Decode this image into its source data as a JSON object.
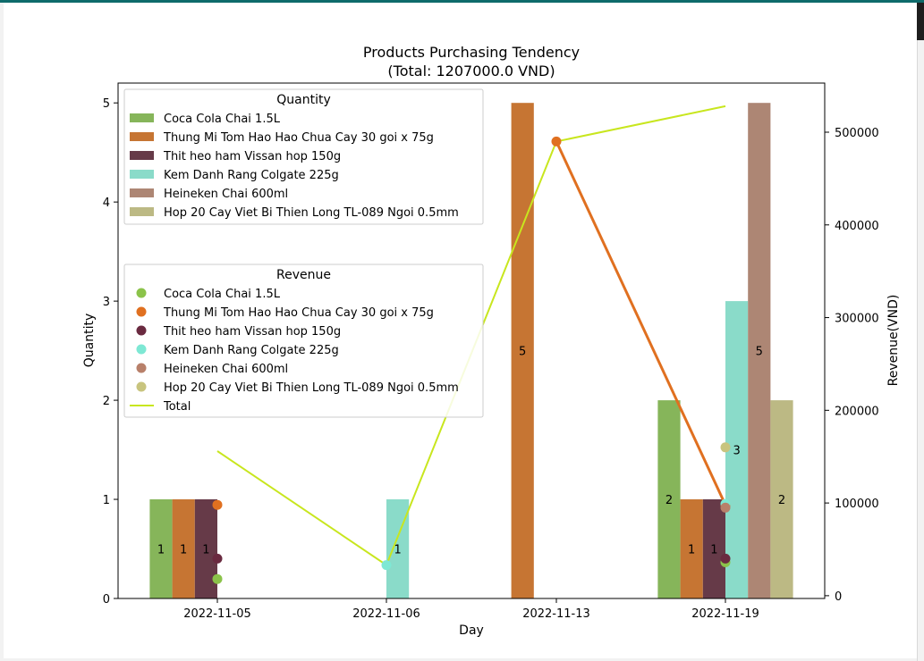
{
  "chart_data": {
    "type": "bar",
    "title": "Products Purchasing Tendency",
    "subtitle": "(Total: 1207000.0 VND)",
    "xlabel": "Day",
    "ylabel": "Quantity",
    "y2label": "Revenue(VND)",
    "categories": [
      "2022-11-05",
      "2022-11-06",
      "2022-11-13",
      "2022-11-19"
    ],
    "ylim": [
      0,
      5.2
    ],
    "y2lim": [
      -3000,
      553000
    ],
    "yticks": [
      "0",
      "1",
      "2",
      "3",
      "4",
      "5"
    ],
    "y2ticks": [
      "0",
      "100000",
      "200000",
      "300000",
      "400000",
      "500000"
    ],
    "quantity_legend_title": "Quantity",
    "revenue_legend_title": "Revenue",
    "total_label": "Total",
    "series": [
      {
        "name": "Coca Cola Chai 1.5L",
        "bar_color": "#86b55a",
        "dot_color": "#8bc34a",
        "quantity": [
          1,
          0,
          0,
          2
        ],
        "revenue": [
          18000,
          null,
          null,
          36000
        ]
      },
      {
        "name": "Thung Mi Tom Hao Hao Chua Cay 30 goi x 75g",
        "bar_color": "#c67533",
        "dot_color": "#e07020",
        "quantity": [
          1,
          0,
          5,
          1
        ],
        "revenue": [
          98000,
          null,
          490000,
          98000
        ]
      },
      {
        "name": "Thit heo ham Vissan hop 150g",
        "bar_color": "#663a48",
        "dot_color": "#6a2a40",
        "quantity": [
          1,
          0,
          0,
          1
        ],
        "revenue": [
          40000,
          null,
          null,
          40000
        ]
      },
      {
        "name": "Kem Danh Rang Colgate 225g",
        "bar_color": "#8adbc9",
        "dot_color": "#7ee8d4",
        "quantity": [
          0,
          1,
          0,
          3
        ],
        "revenue": [
          null,
          33000,
          null,
          99000
        ]
      },
      {
        "name": "Heineken Chai 600ml",
        "bar_color": "#ad8674",
        "dot_color": "#b8806a",
        "quantity": [
          0,
          0,
          0,
          5
        ],
        "revenue": [
          null,
          null,
          null,
          95000
        ]
      },
      {
        "name": "Hop 20 Cay Viet Bi Thien Long TL-089 Ngoi 0.5mm",
        "bar_color": "#bcb984",
        "dot_color": "#c8c47e",
        "quantity": [
          0,
          0,
          0,
          2
        ],
        "revenue": [
          null,
          null,
          null,
          160000
        ]
      }
    ],
    "total_revenue": [
      156000,
      33000,
      490000,
      528000
    ],
    "total_color": "#c8e61e",
    "bar_labels": [
      {
        "category": 0,
        "series": 0,
        "text": "1"
      },
      {
        "category": 0,
        "series": 1,
        "text": "1"
      },
      {
        "category": 0,
        "series": 2,
        "text": "1"
      },
      {
        "category": 1,
        "series": 3,
        "text": "1"
      },
      {
        "category": 2,
        "series": 1,
        "text": "5"
      },
      {
        "category": 3,
        "series": 0,
        "text": "2"
      },
      {
        "category": 3,
        "series": 1,
        "text": "1"
      },
      {
        "category": 3,
        "series": 2,
        "text": "1"
      },
      {
        "category": 3,
        "series": 3,
        "text": "3"
      },
      {
        "category": 3,
        "series": 4,
        "text": "5"
      },
      {
        "category": 3,
        "series": 5,
        "text": "2"
      }
    ],
    "grid": false,
    "legend_placement": "top-left"
  }
}
